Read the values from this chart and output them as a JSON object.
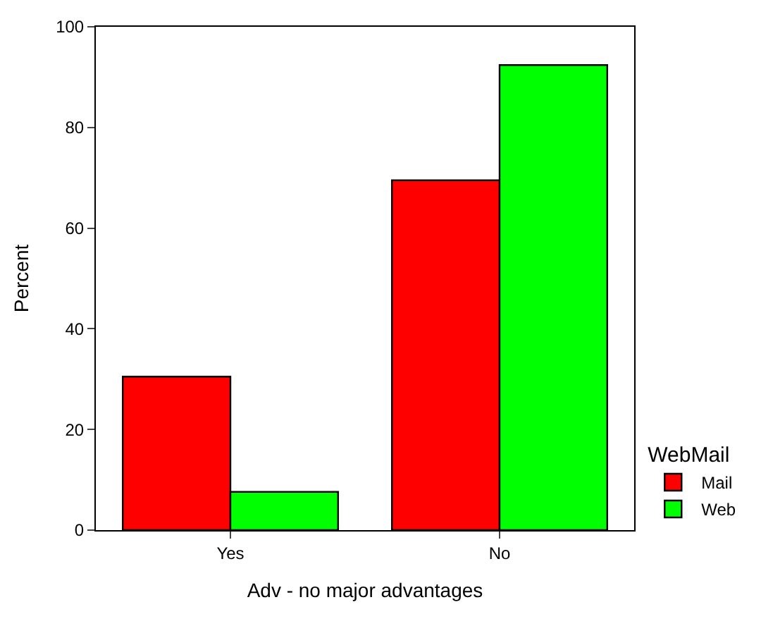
{
  "chart_data": {
    "type": "bar",
    "xlabel": "Adv - no major advantages",
    "ylabel": "Percent",
    "legend_title": "WebMail",
    "categories": [
      "Yes",
      "No"
    ],
    "series": [
      {
        "name": "Mail",
        "color": "#ff0000",
        "values": [
          30.5,
          69.5
        ]
      },
      {
        "name": "Web",
        "color": "#00ff00",
        "values": [
          7.6,
          92.4
        ]
      }
    ],
    "ylim": [
      0,
      100
    ],
    "yticks": [
      0,
      20,
      40,
      60,
      80,
      100
    ],
    "legend": "right"
  }
}
